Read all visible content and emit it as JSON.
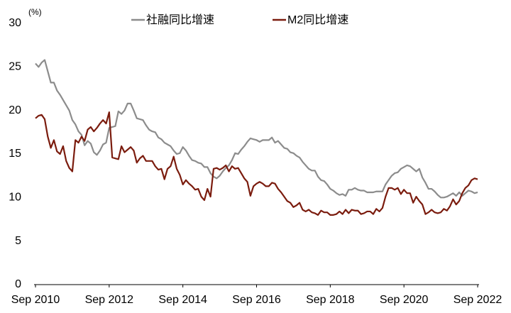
{
  "chart_data": {
    "type": "line",
    "y_unit_label": "(%)",
    "x": [
      "2010-09",
      "2010-10",
      "2010-11",
      "2010-12",
      "2011-01",
      "2011-02",
      "2011-03",
      "2011-04",
      "2011-05",
      "2011-06",
      "2011-07",
      "2011-08",
      "2011-09",
      "2011-10",
      "2011-11",
      "2011-12",
      "2012-01",
      "2012-02",
      "2012-03",
      "2012-04",
      "2012-05",
      "2012-06",
      "2012-07",
      "2012-08",
      "2012-09",
      "2012-10",
      "2012-11",
      "2012-12",
      "2013-01",
      "2013-02",
      "2013-03",
      "2013-04",
      "2013-05",
      "2013-06",
      "2013-07",
      "2013-08",
      "2013-09",
      "2013-10",
      "2013-11",
      "2013-12",
      "2014-01",
      "2014-02",
      "2014-03",
      "2014-04",
      "2014-05",
      "2014-06",
      "2014-07",
      "2014-08",
      "2014-09",
      "2014-10",
      "2014-11",
      "2014-12",
      "2015-01",
      "2015-02",
      "2015-03",
      "2015-04",
      "2015-05",
      "2015-06",
      "2015-07",
      "2015-08",
      "2015-09",
      "2015-10",
      "2015-11",
      "2015-12",
      "2016-01",
      "2016-02",
      "2016-03",
      "2016-04",
      "2016-05",
      "2016-06",
      "2016-07",
      "2016-08",
      "2016-09",
      "2016-10",
      "2016-11",
      "2016-12",
      "2017-01",
      "2017-02",
      "2017-03",
      "2017-04",
      "2017-05",
      "2017-06",
      "2017-07",
      "2017-08",
      "2017-09",
      "2017-10",
      "2017-11",
      "2017-12",
      "2018-01",
      "2018-02",
      "2018-03",
      "2018-04",
      "2018-05",
      "2018-06",
      "2018-07",
      "2018-08",
      "2018-09",
      "2018-10",
      "2018-11",
      "2018-12",
      "2019-01",
      "2019-02",
      "2019-03",
      "2019-04",
      "2019-05",
      "2019-06",
      "2019-07",
      "2019-08",
      "2019-09",
      "2019-10",
      "2019-11",
      "2019-12",
      "2020-01",
      "2020-02",
      "2020-03",
      "2020-04",
      "2020-05",
      "2020-06",
      "2020-07",
      "2020-08",
      "2020-09",
      "2020-10",
      "2020-11",
      "2020-12",
      "2021-01",
      "2021-02",
      "2021-03",
      "2021-04",
      "2021-05",
      "2021-06",
      "2021-07",
      "2021-08",
      "2021-09",
      "2021-10",
      "2021-11",
      "2021-12",
      "2022-01",
      "2022-02",
      "2022-03",
      "2022-04",
      "2022-05",
      "2022-06",
      "2022-07",
      "2022-08",
      "2022-09"
    ],
    "series": [
      {
        "name": "社融同比增速",
        "color": "#8c8c8c",
        "values": [
          25.4,
          25.0,
          25.5,
          25.8,
          24.5,
          23.2,
          23.2,
          22.3,
          21.8,
          21.2,
          20.6,
          20.0,
          18.9,
          18.4,
          17.6,
          17.2,
          16.0,
          16.5,
          16.2,
          15.2,
          14.9,
          15.4,
          16.1,
          16.3,
          18.0,
          18.1,
          18.2,
          19.9,
          19.6,
          20.0,
          20.8,
          20.8,
          20.0,
          19.1,
          19.0,
          18.9,
          18.3,
          17.8,
          17.6,
          17.5,
          16.9,
          16.7,
          16.3,
          16.1,
          15.9,
          15.4,
          15.0,
          15.1,
          15.8,
          15.4,
          14.8,
          14.3,
          14.2,
          14.0,
          13.9,
          13.5,
          13.5,
          12.8,
          12.4,
          12.2,
          12.5,
          13.0,
          13.4,
          13.7,
          14.3,
          15.1,
          15.0,
          15.5,
          15.9,
          16.4,
          16.8,
          16.7,
          16.6,
          16.4,
          16.6,
          16.6,
          16.6,
          16.9,
          16.3,
          16.5,
          16.1,
          15.7,
          15.6,
          15.2,
          15.1,
          14.8,
          14.6,
          14.1,
          13.7,
          13.3,
          13.1,
          13.1,
          12.4,
          12.0,
          11.9,
          11.5,
          11.0,
          10.8,
          10.5,
          10.3,
          10.4,
          10.2,
          10.9,
          10.9,
          11.1,
          10.9,
          10.8,
          10.8,
          10.6,
          10.6,
          10.6,
          10.7,
          10.7,
          10.7,
          11.5,
          12.0,
          12.5,
          12.8,
          12.9,
          13.3,
          13.5,
          13.7,
          13.6,
          13.3,
          13.0,
          13.3,
          12.3,
          11.7,
          11.0,
          11.0,
          10.7,
          10.3,
          10.0,
          10.0,
          10.1,
          10.3,
          10.5,
          10.2,
          10.6,
          10.2,
          10.5,
          10.8,
          10.7,
          10.5,
          10.6
        ]
      },
      {
        "name": "M2同比增速",
        "color": "#7b1c0e",
        "values": [
          19.1,
          19.4,
          19.5,
          19.0,
          17.0,
          15.7,
          16.6,
          15.3,
          15.0,
          15.9,
          14.2,
          13.4,
          13.0,
          16.6,
          16.3,
          17.0,
          16.5,
          17.8,
          18.1,
          17.6,
          18.0,
          18.5,
          18.9,
          18.5,
          19.8,
          14.6,
          14.5,
          14.4,
          15.9,
          15.2,
          15.5,
          15.8,
          15.4,
          14.0,
          14.5,
          14.8,
          14.2,
          14.2,
          14.2,
          13.6,
          13.2,
          13.3,
          12.1,
          13.3,
          13.6,
          14.7,
          13.3,
          12.6,
          11.5,
          12.0,
          11.6,
          11.3,
          10.9,
          11.0,
          10.1,
          9.7,
          11.0,
          10.1,
          13.3,
          13.4,
          13.2,
          13.4,
          13.7,
          13.0,
          13.6,
          13.3,
          13.4,
          12.8,
          12.2,
          11.8,
          10.2,
          11.3,
          11.6,
          11.8,
          11.6,
          11.3,
          11.3,
          11.7,
          11.6,
          11.0,
          10.6,
          10.1,
          9.6,
          9.4,
          8.9,
          9.1,
          9.4,
          8.6,
          8.4,
          8.6,
          8.3,
          8.2,
          8.0,
          8.5,
          8.3,
          8.3,
          8.0,
          8.0,
          8.1,
          8.4,
          8.1,
          8.6,
          8.2,
          8.6,
          8.5,
          8.5,
          8.1,
          8.2,
          8.4,
          8.4,
          8.1,
          8.7,
          8.4,
          8.8,
          10.1,
          11.1,
          11.1,
          10.9,
          11.1,
          10.4,
          10.9,
          10.5,
          10.5,
          9.4,
          10.1,
          9.6,
          9.2,
          8.1,
          8.3,
          8.6,
          8.3,
          8.2,
          8.3,
          8.7,
          8.5,
          9.0,
          9.8,
          9.2,
          9.6,
          10.5,
          11.1,
          11.4,
          12.0,
          12.2,
          12.1
        ]
      }
    ],
    "ylim": [
      0,
      30
    ],
    "yticks": [
      0,
      5,
      10,
      15,
      20,
      25,
      30
    ],
    "xticks": [
      {
        "value": "2010-09",
        "label": "Sep 2010"
      },
      {
        "value": "2012-09",
        "label": "Sep 2012"
      },
      {
        "value": "2014-09",
        "label": "Sep 2014"
      },
      {
        "value": "2016-09",
        "label": "Sep 2016"
      },
      {
        "value": "2018-09",
        "label": "Sep 2018"
      },
      {
        "value": "2020-09",
        "label": "Sep 2020"
      },
      {
        "value": "2022-09",
        "label": "Sep 2022"
      }
    ],
    "grid": false
  }
}
